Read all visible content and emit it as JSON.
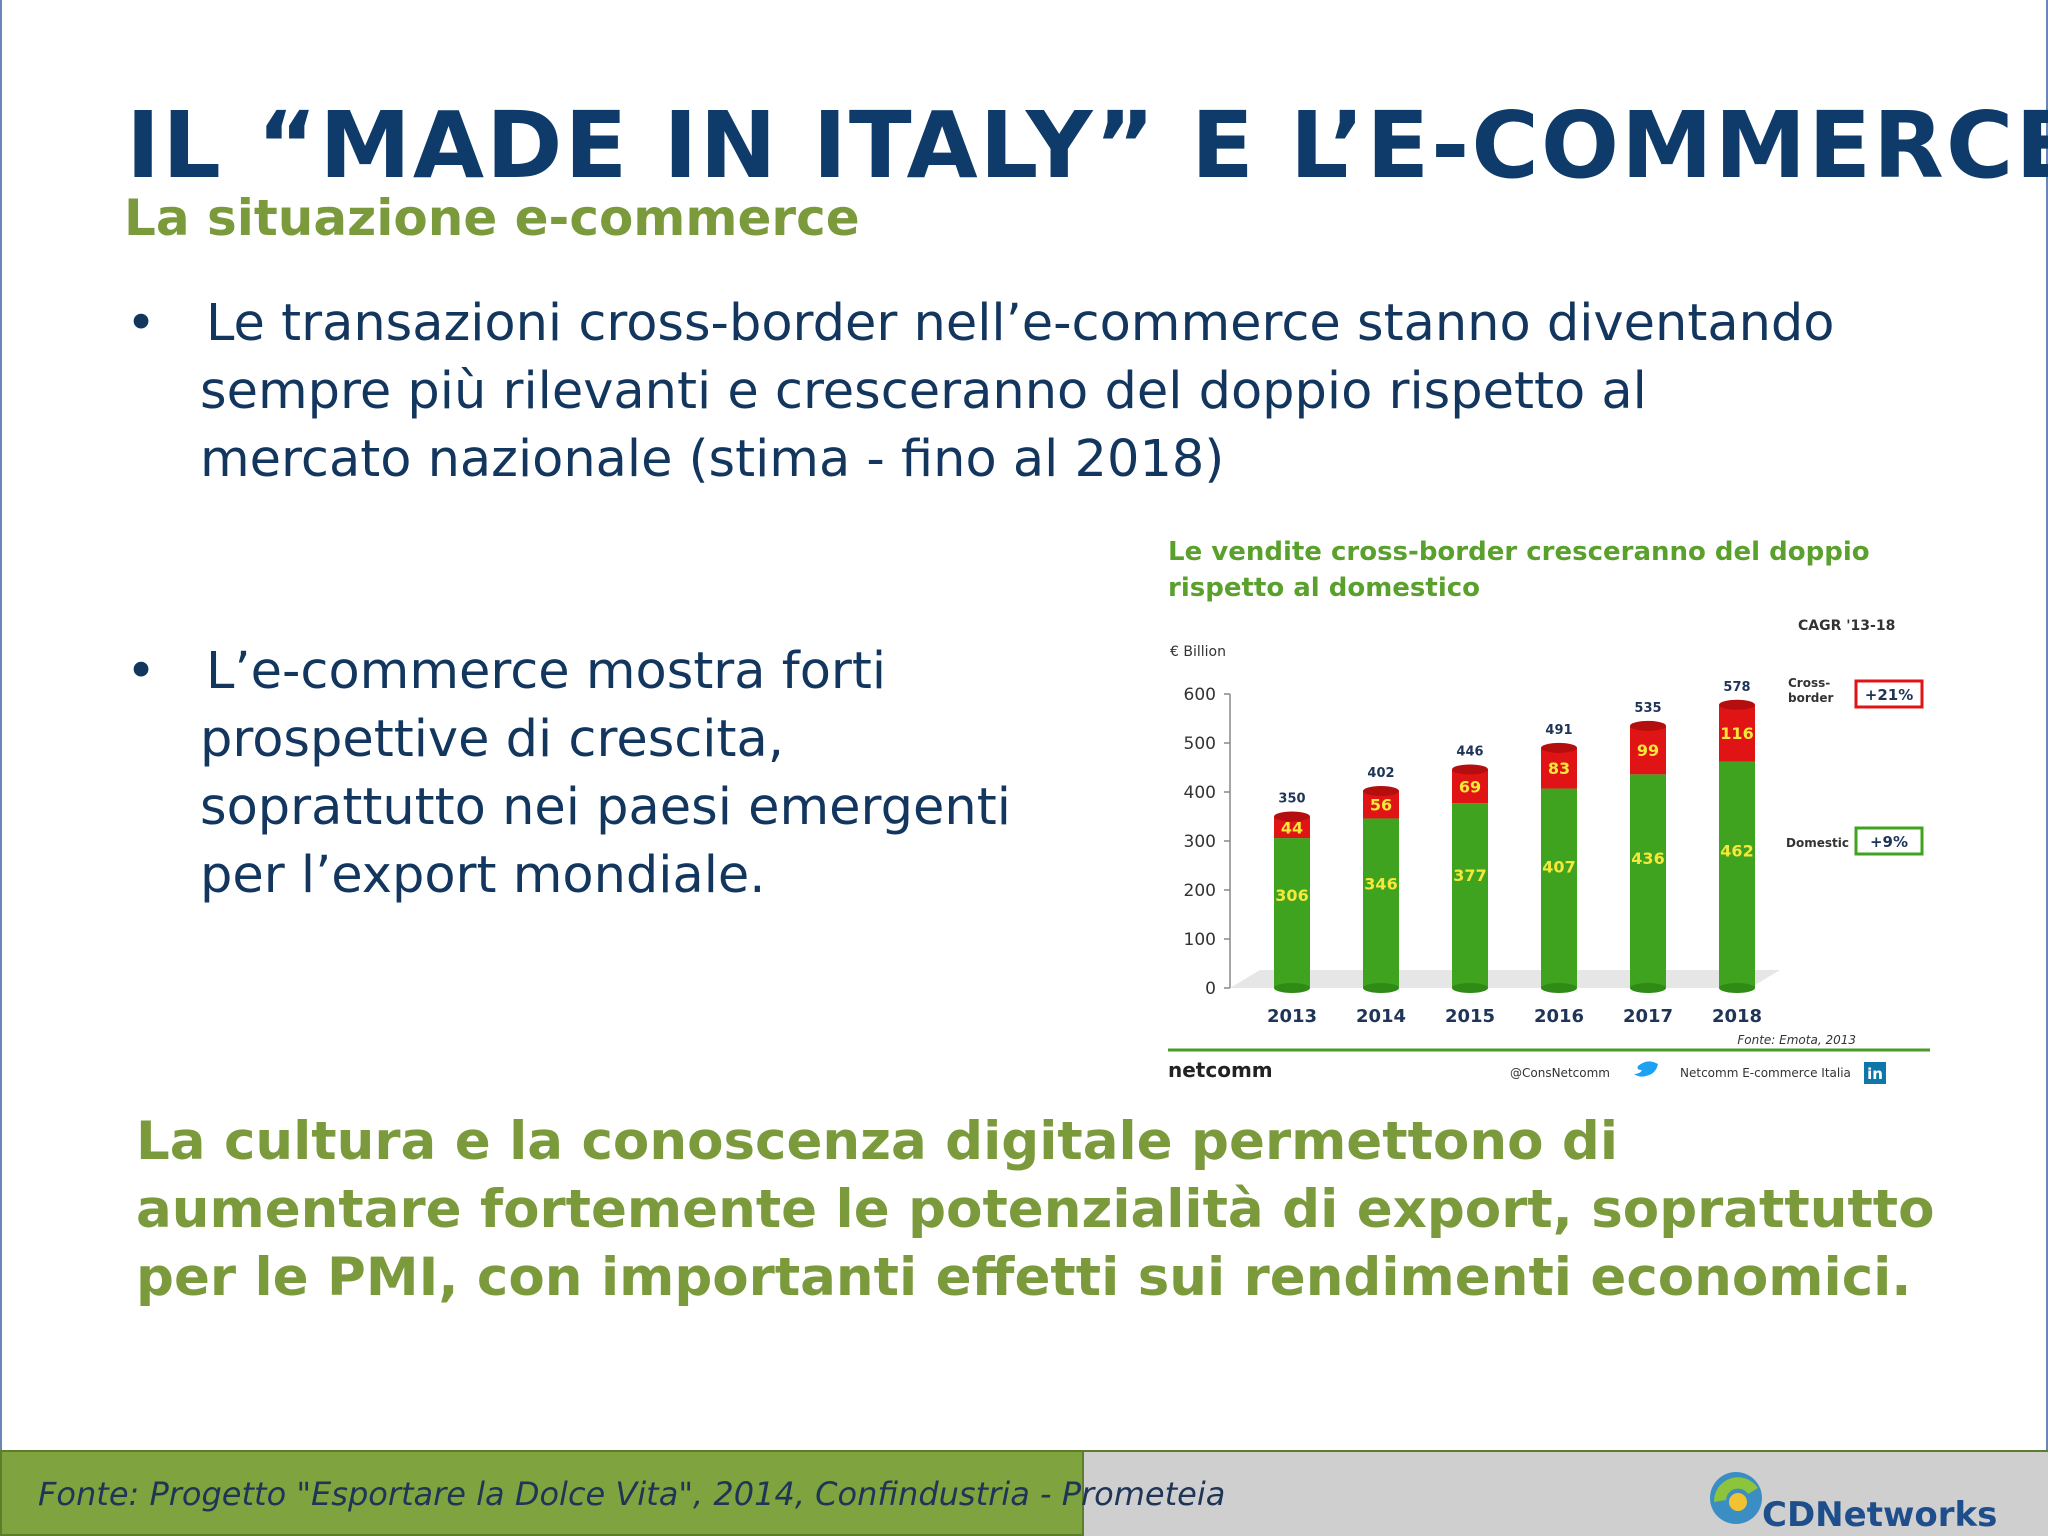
{
  "slide": {
    "title": "IL “MADE IN ITALY” E L’E-COMMERCE",
    "subtitle": "La situazione e-commerce",
    "bullet_symbol": "•",
    "bullets": [
      {
        "line1": "Le transazioni cross-border nell’e-commerce stanno diventando",
        "rest": "sempre più rilevanti e cresceranno del doppio rispetto al mercato nazionale (stima - fino al 2018)"
      },
      {
        "text": "L’e-commerce mostra forti prospettive di crescita, soprattutto nei paesi emergenti per l’export mondiale."
      }
    ],
    "conclusion": "La cultura e la conoscenza digitale permettono di aumentare fortemente le potenzialità di export, soprattutto per le PMI, con importanti effetti sui rendimenti economici."
  },
  "footer": {
    "source": "Fonte: Progetto \"Esportare la Dolce Vita\", 2014, Confindustria - Prometeia",
    "logo_text": "CDNetworks",
    "left_color": "#7ea33f",
    "right_color": "#cfcfcf"
  },
  "chart_data": {
    "type": "bar",
    "stacked": true,
    "title": "Le vendite cross-border cresceranno del doppio rispetto al domestico",
    "unit_label": "€ Billion",
    "categories": [
      "2013",
      "2014",
      "2015",
      "2016",
      "2017",
      "2018"
    ],
    "series": [
      {
        "name": "Domestic",
        "values": [
          306,
          346,
          377,
          407,
          436,
          462
        ],
        "color": "#3fa31f",
        "cagr": "+9%"
      },
      {
        "name": "Cross-border",
        "values": [
          44,
          56,
          69,
          83,
          99,
          116
        ],
        "color": "#e01414",
        "cagr": "+21%"
      }
    ],
    "totals": [
      350,
      402,
      446,
      491,
      535,
      578
    ],
    "yticks": [
      0,
      100,
      200,
      300,
      400,
      500,
      600
    ],
    "ylim": [
      0,
      600
    ],
    "cagr_header": "CAGR '13-18",
    "legend_labels": {
      "cross_border": "Cross-border",
      "domestic": "Domestic"
    },
    "source": "Fonte: Emota, 2013",
    "brand": "netcomm",
    "twitter": "@ConsNetcomm",
    "linkedin": "Netcomm E-commerce Italia",
    "linkedin_icon": "in"
  }
}
